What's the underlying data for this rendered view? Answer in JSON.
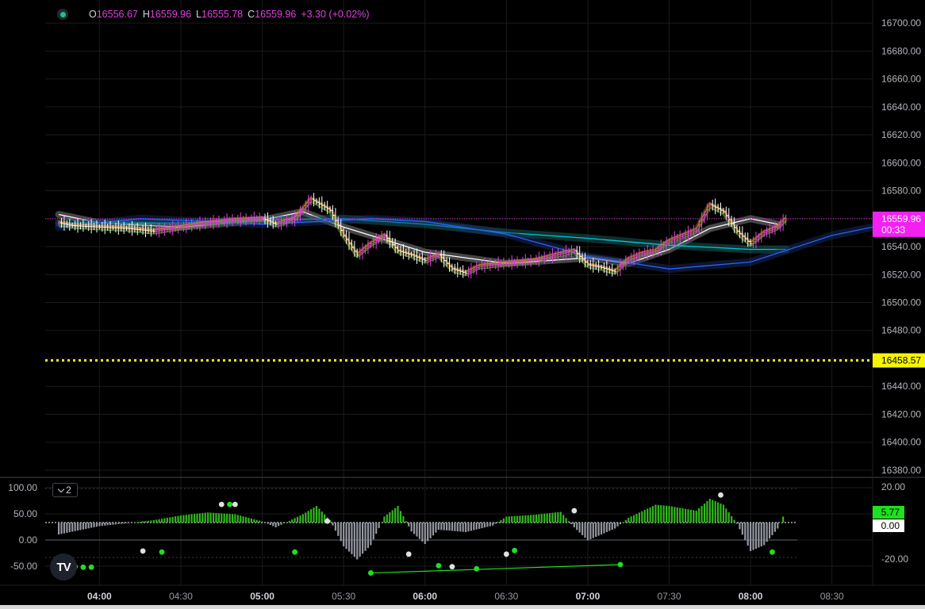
{
  "legend": {
    "open_key": "O",
    "open": "16556.67",
    "high_key": "H",
    "high": "16559.96",
    "low_key": "L",
    "low": "16555.78",
    "close_key": "C",
    "close": "16559.96",
    "change": "+3.30 (+0.02%)"
  },
  "indicator_toggle": {
    "count": "2"
  },
  "logo": {
    "text": "TV"
  },
  "colors": {
    "up": "#e040e0",
    "price_label": "#f221f2",
    "level": "#f5f500",
    "hist_up": "#32b81d",
    "hist_down": "#9598a1",
    "grid": "#1b1b1b"
  },
  "chart_data": [
    {
      "type": "line",
      "series_kind": "candlestick",
      "x_axis": {
        "ticks": [
          "04:00",
          "04:30",
          "05:00",
          "05:30",
          "06:00",
          "06:30",
          "07:00",
          "07:30",
          "08:00",
          "08:30"
        ]
      },
      "y_axis": {
        "ticks": [
          "16700.00",
          "16680.00",
          "16660.00",
          "16640.00",
          "16620.00",
          "16600.00",
          "16580.00",
          "16560.00",
          "16540.00",
          "16520.00",
          "16500.00",
          "16480.00",
          "16460.00",
          "16440.00",
          "16420.00",
          "16400.00",
          "16380.00"
        ],
        "ylim": [
          16376,
          16708
        ]
      },
      "price_axis_labels": [
        {
          "kind": "last",
          "value": "16559.96",
          "countdown": "00:33"
        },
        {
          "kind": "level",
          "value": "16458.57"
        }
      ],
      "close_path": [
        [
          "03:45",
          16557
        ],
        [
          "03:50",
          16555
        ],
        [
          "04:00",
          16554
        ],
        [
          "04:10",
          16553
        ],
        [
          "04:20",
          16551
        ],
        [
          "04:30",
          16554
        ],
        [
          "04:40",
          16557
        ],
        [
          "04:50",
          16559
        ],
        [
          "05:00",
          16560
        ],
        [
          "05:05",
          16556
        ],
        [
          "05:12",
          16560
        ],
        [
          "05:18",
          16574
        ],
        [
          "05:25",
          16566
        ],
        [
          "05:30",
          16548
        ],
        [
          "05:35",
          16534
        ],
        [
          "05:40",
          16542
        ],
        [
          "05:45",
          16548
        ],
        [
          "05:50",
          16537
        ],
        [
          "05:55",
          16534
        ],
        [
          "06:00",
          16530
        ],
        [
          "06:05",
          16534
        ],
        [
          "06:10",
          16524
        ],
        [
          "06:15",
          16521
        ],
        [
          "06:20",
          16526
        ],
        [
          "06:30",
          16528
        ],
        [
          "06:40",
          16530
        ],
        [
          "06:50",
          16535
        ],
        [
          "06:55",
          16537
        ],
        [
          "07:00",
          16527
        ],
        [
          "07:05",
          16525
        ],
        [
          "07:10",
          16522
        ],
        [
          "07:15",
          16531
        ],
        [
          "07:20",
          16535
        ],
        [
          "07:25",
          16537
        ],
        [
          "07:30",
          16544
        ],
        [
          "07:35",
          16548
        ],
        [
          "07:40",
          16552
        ],
        [
          "07:45",
          16570
        ],
        [
          "07:50",
          16565
        ],
        [
          "07:55",
          16551
        ],
        [
          "08:00",
          16542
        ],
        [
          "08:05",
          16550
        ],
        [
          "08:10",
          16554
        ],
        [
          "08:13",
          16560
        ]
      ],
      "moving_averages": [
        {
          "color": "#ffffff",
          "points": [
            [
              "03:45",
              16563
            ],
            [
              "04:00",
              16557
            ],
            [
              "04:30",
              16554
            ],
            [
              "05:00",
              16559
            ],
            [
              "05:15",
              16565
            ],
            [
              "05:30",
              16554
            ],
            [
              "06:00",
              16536
            ],
            [
              "06:30",
              16528
            ],
            [
              "07:00",
              16532
            ],
            [
              "07:15",
              16528
            ],
            [
              "07:30",
              16538
            ],
            [
              "07:45",
              16553
            ],
            [
              "08:00",
              16560
            ],
            [
              "08:10",
              16556
            ]
          ]
        },
        {
          "color": "#00c8d7",
          "points": [
            [
              "03:45",
              16557
            ],
            [
              "04:30",
              16557
            ],
            [
              "05:00",
              16559
            ],
            [
              "05:30",
              16560
            ],
            [
              "06:00",
              16556
            ],
            [
              "06:30",
              16550
            ],
            [
              "07:00",
              16546
            ],
            [
              "07:30",
              16541
            ],
            [
              "08:00",
              16538
            ],
            [
              "08:13",
              16538
            ]
          ]
        },
        {
          "color": "#2962ff",
          "points": [
            [
              "03:45",
              16554
            ],
            [
              "04:15",
              16560
            ],
            [
              "04:40",
              16558
            ],
            [
              "05:00",
              16556
            ],
            [
              "05:40",
              16560
            ],
            [
              "06:00",
              16558
            ],
            [
              "06:30",
              16549
            ],
            [
              "07:00",
              16533
            ],
            [
              "07:30",
              16524
            ],
            [
              "08:00",
              16529
            ],
            [
              "08:30",
              16548
            ],
            [
              "08:45",
              16554
            ]
          ]
        }
      ]
    },
    {
      "type": "bar",
      "y_axis": {
        "ticks": [
          "100.00",
          "50.00",
          "0.00",
          "-50.00"
        ],
        "right_ticks": [
          "20.00",
          "-20.00"
        ]
      },
      "value_labels": [
        "5.77",
        "0.00"
      ],
      "histogram": [
        [
          "03:45",
          -20
        ],
        [
          "04:00",
          -6
        ],
        [
          "04:10",
          -1
        ],
        [
          "04:20",
          4
        ],
        [
          "04:30",
          12
        ],
        [
          "04:40",
          17
        ],
        [
          "04:50",
          14
        ],
        [
          "05:00",
          2
        ],
        [
          "05:05",
          -8
        ],
        [
          "05:15",
          14
        ],
        [
          "05:20",
          28
        ],
        [
          "05:25",
          4
        ],
        [
          "05:30",
          -40
        ],
        [
          "05:35",
          -62
        ],
        [
          "05:40",
          -38
        ],
        [
          "05:45",
          10
        ],
        [
          "05:50",
          28
        ],
        [
          "05:55",
          -15
        ],
        [
          "06:00",
          -36
        ],
        [
          "06:05",
          -12
        ],
        [
          "06:15",
          -16
        ],
        [
          "06:25",
          -5
        ],
        [
          "06:30",
          10
        ],
        [
          "06:40",
          13
        ],
        [
          "06:50",
          18
        ],
        [
          "06:55",
          -8
        ],
        [
          "07:00",
          -30
        ],
        [
          "07:05",
          -20
        ],
        [
          "07:10",
          -10
        ],
        [
          "07:15",
          8
        ],
        [
          "07:25",
          30
        ],
        [
          "07:30",
          28
        ],
        [
          "07:40",
          20
        ],
        [
          "07:45",
          40
        ],
        [
          "07:50",
          30
        ],
        [
          "07:55",
          -2
        ],
        [
          "08:00",
          -48
        ],
        [
          "08:05",
          -38
        ],
        [
          "08:10",
          -10
        ],
        [
          "08:12",
          10
        ]
      ],
      "dots": [
        {
          "t": "03:48",
          "v": -48,
          "c": "#ffffff"
        },
        {
          "t": "03:51",
          "v": -51,
          "c": "#1ee01e"
        },
        {
          "t": "03:54",
          "v": -52,
          "c": "#1ee01e"
        },
        {
          "t": "03:57",
          "v": -52,
          "c": "#1ee01e"
        },
        {
          "t": "04:16",
          "v": -21,
          "c": "#e0e0e0"
        },
        {
          "t": "04:23",
          "v": -23,
          "c": "#1ee01e"
        },
        {
          "t": "04:45",
          "v": 68,
          "c": "#e0e0e0"
        },
        {
          "t": "04:48",
          "v": 68,
          "c": "#1ee01e"
        },
        {
          "t": "04:50",
          "v": 68,
          "c": "#e0e0e0"
        },
        {
          "t": "05:12",
          "v": -23,
          "c": "#1ee01e"
        },
        {
          "t": "05:24",
          "v": 36,
          "c": "#e0e0e0"
        },
        {
          "t": "05:40",
          "v": -63,
          "c": "#1ee01e"
        },
        {
          "t": "05:54",
          "v": -27,
          "c": "#e0e0e0"
        },
        {
          "t": "06:05",
          "v": -49,
          "c": "#1ee01e"
        },
        {
          "t": "06:10",
          "v": -51,
          "c": "#e0e0e0"
        },
        {
          "t": "06:19",
          "v": -55,
          "c": "#1ee01e"
        },
        {
          "t": "06:30",
          "v": -27,
          "c": "#e0e0e0"
        },
        {
          "t": "06:33",
          "v": -20,
          "c": "#1ee01e"
        },
        {
          "t": "06:55",
          "v": 56,
          "c": "#e0e0e0"
        },
        {
          "t": "07:12",
          "v": -47,
          "c": "#1ee01e"
        },
        {
          "t": "07:49",
          "v": 86,
          "c": "#e0e0e0"
        },
        {
          "t": "08:08",
          "v": -23,
          "c": "#1ee01e"
        }
      ],
      "trendline": [
        [
          "05:40",
          -63
        ],
        [
          "07:12",
          -47
        ]
      ]
    }
  ]
}
